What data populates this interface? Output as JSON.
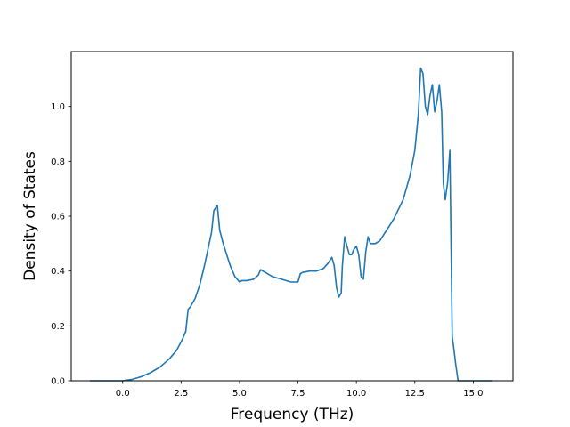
{
  "chart_data": {
    "type": "line",
    "title": "",
    "xlabel": "Frequency (THz)",
    "ylabel": "Density of States",
    "xlim": [
      -2.2,
      16.7
    ],
    "ylim": [
      0.0,
      1.2
    ],
    "xticks": [
      0.0,
      2.5,
      5.0,
      7.5,
      10.0,
      12.5,
      15.0
    ],
    "xtick_labels": [
      "0.0",
      "2.5",
      "5.0",
      "7.5",
      "10.0",
      "12.5",
      "15.0"
    ],
    "yticks": [
      0.0,
      0.2,
      0.4,
      0.6,
      0.8,
      1.0
    ],
    "ytick_labels": [
      "0.0",
      "0.2",
      "0.4",
      "0.6",
      "0.8",
      "1.0"
    ],
    "grid": false,
    "line_color": "#1f77b4",
    "series": [
      {
        "x": [
          -1.4,
          -1.0,
          -0.5,
          0.0,
          0.4,
          0.8,
          1.2,
          1.6,
          2.0,
          2.3,
          2.55,
          2.7,
          2.8,
          2.9,
          3.1,
          3.3,
          3.5,
          3.6,
          3.7,
          3.8,
          3.9,
          4.05,
          4.15,
          4.3,
          4.45,
          4.6,
          4.8,
          5.0,
          5.1,
          5.3,
          5.6,
          5.8,
          5.9,
          6.1,
          6.4,
          6.8,
          7.2,
          7.5,
          7.6,
          7.7,
          8.0,
          8.3,
          8.6,
          8.8,
          8.95,
          9.05,
          9.15,
          9.25,
          9.35,
          9.4,
          9.5,
          9.6,
          9.7,
          9.8,
          9.9,
          10.0,
          10.1,
          10.2,
          10.3,
          10.4,
          10.5,
          10.6,
          10.8,
          11.0,
          11.3,
          11.6,
          12.0,
          12.3,
          12.5,
          12.65,
          12.75,
          12.85,
          12.95,
          13.05,
          13.15,
          13.25,
          13.35,
          13.45,
          13.55,
          13.65,
          13.72,
          13.8,
          13.9,
          14.0,
          14.05,
          14.1,
          14.15,
          14.25,
          14.35,
          14.45,
          15.0,
          15.8
        ],
        "values": [
          0.0,
          0.0,
          0.0,
          0.0,
          0.005,
          0.015,
          0.03,
          0.05,
          0.08,
          0.11,
          0.15,
          0.18,
          0.26,
          0.27,
          0.3,
          0.35,
          0.42,
          0.46,
          0.5,
          0.54,
          0.62,
          0.64,
          0.55,
          0.5,
          0.46,
          0.42,
          0.38,
          0.36,
          0.365,
          0.365,
          0.37,
          0.385,
          0.405,
          0.395,
          0.38,
          0.37,
          0.36,
          0.36,
          0.39,
          0.395,
          0.4,
          0.4,
          0.41,
          0.43,
          0.45,
          0.42,
          0.34,
          0.305,
          0.32,
          0.42,
          0.525,
          0.49,
          0.46,
          0.46,
          0.48,
          0.49,
          0.46,
          0.38,
          0.37,
          0.47,
          0.525,
          0.5,
          0.5,
          0.51,
          0.55,
          0.59,
          0.66,
          0.75,
          0.84,
          0.97,
          1.14,
          1.12,
          1.0,
          0.97,
          1.04,
          1.08,
          0.98,
          1.02,
          1.08,
          0.98,
          0.72,
          0.66,
          0.72,
          0.84,
          0.5,
          0.16,
          0.13,
          0.06,
          0.0,
          0.0,
          0.0,
          0.0
        ]
      }
    ]
  }
}
